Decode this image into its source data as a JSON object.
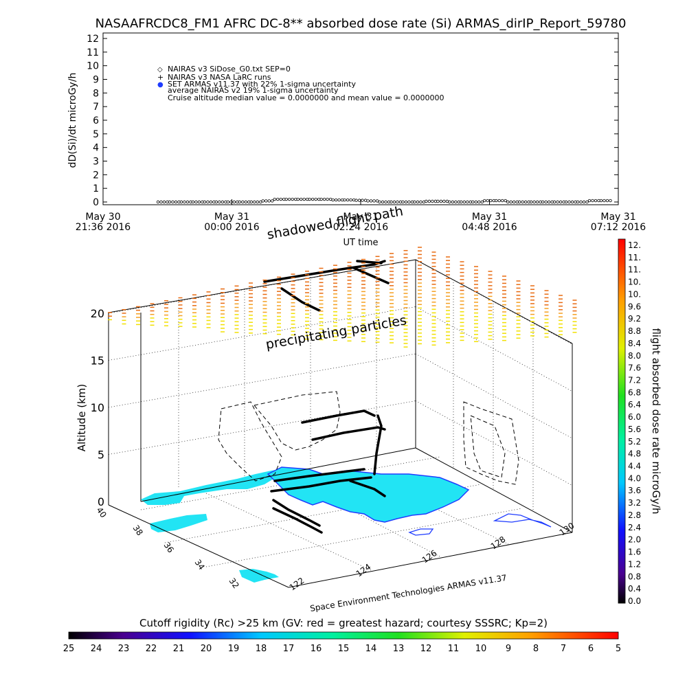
{
  "chart_data": [
    {
      "type": "line",
      "title": "NASAAFRCDC8_FM1 AFRC DC-8** absorbed dose rate (Si) ARMAS_dirIP_Report_59780",
      "ylabel": "dD(Si)/dt microGy/h",
      "xlabel": "UT time",
      "ylim": [
        0,
        12
      ],
      "yticks": [
        "0",
        "1",
        "2",
        "3",
        "4",
        "5",
        "6",
        "7",
        "8",
        "9",
        "10",
        "11",
        "12"
      ],
      "xticks": [
        {
          "date": "May 30",
          "time": "21:36 2016"
        },
        {
          "date": "May 31",
          "time": "00:00 2016"
        },
        {
          "date": "May 31",
          "time": "02:24 2016"
        },
        {
          "date": "May 31",
          "time": "04:48 2016"
        },
        {
          "date": "May 31",
          "time": "07:12 2016"
        }
      ],
      "legend": [
        {
          "symbol": "◇",
          "label": "NAIRAS v3 SiDose_G0.txt SEP=0"
        },
        {
          "symbol": "+",
          "label": "NAIRAS v3 NASA LaRC runs"
        },
        {
          "symbol": "●",
          "label": "SET ARMAS v11.37 with 22% 1-sigma uncertainty"
        },
        {
          "symbol": "",
          "label": "average NAIRAS v2 19% 1-sigma uncertainty"
        },
        {
          "symbol": "",
          "label": "Cruise altitude median value = 0.0000000 and mean value = 0.0000000"
        }
      ],
      "series": [
        {
          "name": "NAIRAS v3 SiDose_G0.txt SEP=0",
          "x_hours": [
            0.0,
            0.25,
            0.5,
            0.75,
            1.0,
            1.25,
            1.5,
            1.75,
            2.0,
            2.25,
            2.5,
            2.75,
            3.0,
            3.25,
            3.5,
            3.75,
            4.0,
            4.25,
            4.5,
            4.75,
            5.0,
            5.25,
            5.5,
            5.75,
            6.0,
            6.25,
            6.5,
            6.75,
            7.0,
            7.25,
            7.5,
            7.75,
            8.0,
            8.25,
            8.5,
            8.75,
            9.0,
            9.25,
            9.5
          ],
          "values": [
            0,
            0,
            0,
            0,
            0,
            0,
            0,
            0,
            0,
            0.08,
            0.2,
            0.2,
            0.2,
            0.2,
            0.2,
            0.15,
            0.15,
            0.12,
            0.08,
            0,
            0,
            0,
            0,
            0.05,
            0.05,
            0,
            0,
            0,
            0.1,
            0.1,
            0,
            0,
            0,
            0,
            0,
            0,
            0,
            0.1,
            0.1
          ]
        }
      ]
    },
    {
      "type": "scatter",
      "ylabel": "Altitude (km)",
      "zticks": [
        "0",
        "5",
        "10",
        "15",
        "20"
      ],
      "lat_ticks": [
        "40",
        "38",
        "36",
        "34",
        "32"
      ],
      "lon_ticks": [
        "122",
        "124",
        "126",
        "128",
        "130"
      ],
      "annotations": [
        "shadowed flight path",
        "precipitating particles"
      ],
      "footer": "Space Environment Technologies ARMAS v11.37",
      "colorbar": {
        "title": "flight absorbed dose rate microGy/h",
        "labels": [
          "12.",
          "11.",
          "11.",
          "10.",
          "10.",
          "9.6",
          "9.2",
          "8.8",
          "8.4",
          "8.0",
          "7.6",
          "7.2",
          "6.8",
          "6.4",
          "6.0",
          "5.6",
          "5.2",
          "4.8",
          "4.4",
          "4.0",
          "3.6",
          "3.2",
          "2.8",
          "2.4",
          "2.0",
          "1.6",
          "1.2",
          "0.8",
          "0.4",
          "0.0"
        ]
      },
      "rigidity_bar": {
        "title": "Cutoff rigidity (Rc) >25 km (GV: red = greatest hazard; courtesy SSSRC; Kp=2)",
        "labels": [
          "25",
          "24",
          "23",
          "22",
          "21",
          "20",
          "19",
          "18",
          "17",
          "16",
          "15",
          "14",
          "13",
          "12",
          "11",
          "10",
          "9",
          "8",
          "7",
          "6",
          "5"
        ]
      }
    }
  ],
  "colors": {
    "land": "#22e4f4",
    "coast": "#1f3cff",
    "track": "#000000"
  }
}
